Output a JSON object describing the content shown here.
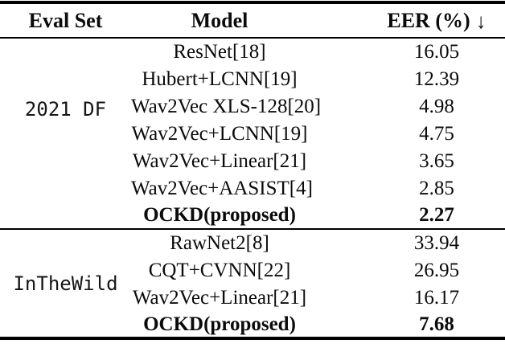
{
  "table": {
    "header": {
      "eval_set": "Eval Set",
      "model": "Model",
      "eer": "EER (%)",
      "sort_arrow": "↓"
    },
    "groups": [
      {
        "eval_set": "2021 DF",
        "rows": [
          {
            "model": "ResNet[18]",
            "eer": "16.05",
            "bold": false
          },
          {
            "model": "Hubert+LCNN[19]",
            "eer": "12.39",
            "bold": false
          },
          {
            "model": "Wav2Vec XLS-128[20]",
            "eer": "4.98",
            "bold": false
          },
          {
            "model": "Wav2Vec+LCNN[19]",
            "eer": "4.75",
            "bold": false
          },
          {
            "model": "Wav2Vec+Linear[21]",
            "eer": "3.65",
            "bold": false
          },
          {
            "model": "Wav2Vec+AASIST[4]",
            "eer": "2.85",
            "bold": false
          },
          {
            "model": "OCKD(proposed)",
            "eer": "2.27",
            "bold": true
          }
        ]
      },
      {
        "eval_set": "InTheWild",
        "rows": [
          {
            "model": "RawNet2[8]",
            "eer": "33.94",
            "bold": false
          },
          {
            "model": "CQT+CVNN[22]",
            "eer": "26.95",
            "bold": false
          },
          {
            "model": "Wav2Vec+Linear[21]",
            "eer": "16.17",
            "bold": false
          },
          {
            "model": "OCKD(proposed)",
            "eer": "7.68",
            "bold": true
          }
        ]
      }
    ]
  }
}
